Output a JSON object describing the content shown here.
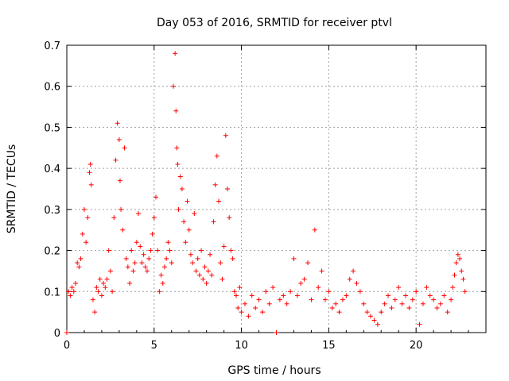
{
  "chart_data": {
    "type": "scatter",
    "title": "Day 053 of 2016, SRMTID for receiver ptvl",
    "xlabel": "GPS time / hours",
    "ylabel": "SRMTID / TECUs",
    "xlim": [
      0,
      24
    ],
    "ylim": [
      0,
      0.7
    ],
    "xticks": [
      "0",
      "5",
      "10",
      "15",
      "20"
    ],
    "yticks": [
      "0",
      "0.1",
      "0.2",
      "0.3",
      "0.4",
      "0.5",
      "0.6",
      "0.7"
    ],
    "grid": true,
    "marker": "+",
    "color": "#ff0000",
    "series": [
      {
        "name": "SRMTID",
        "x": [
          0.0,
          0.1,
          0.2,
          0.3,
          0.4,
          0.5,
          0.6,
          0.7,
          0.8,
          0.9,
          1.0,
          1.1,
          1.2,
          1.3,
          1.35,
          1.4,
          1.5,
          1.6,
          1.7,
          1.8,
          1.9,
          2.0,
          2.1,
          2.2,
          2.3,
          2.4,
          2.5,
          2.6,
          2.7,
          2.8,
          2.9,
          3.0,
          3.05,
          3.1,
          3.2,
          3.3,
          3.4,
          3.5,
          3.6,
          3.7,
          3.8,
          3.9,
          4.0,
          4.1,
          4.2,
          4.3,
          4.4,
          4.5,
          4.6,
          4.7,
          4.8,
          4.9,
          5.0,
          5.1,
          5.2,
          5.3,
          5.4,
          5.5,
          5.6,
          5.7,
          5.8,
          5.9,
          6.0,
          6.1,
          6.2,
          6.25,
          6.3,
          6.35,
          6.4,
          6.5,
          6.6,
          6.7,
          6.8,
          6.9,
          7.0,
          7.1,
          7.2,
          7.3,
          7.4,
          7.5,
          7.6,
          7.7,
          7.8,
          7.9,
          8.0,
          8.1,
          8.2,
          8.3,
          8.4,
          8.5,
          8.6,
          8.7,
          8.8,
          8.9,
          9.0,
          9.1,
          9.2,
          9.3,
          9.4,
          9.5,
          9.6,
          9.7,
          9.8,
          9.9,
          10.0,
          10.2,
          10.4,
          10.6,
          10.8,
          11.0,
          11.2,
          11.4,
          11.6,
          11.8,
          12.0,
          12.2,
          12.4,
          12.6,
          12.8,
          13.0,
          13.2,
          13.4,
          13.6,
          13.8,
          14.0,
          14.2,
          14.4,
          14.6,
          14.8,
          15.0,
          15.2,
          15.4,
          15.6,
          15.8,
          16.0,
          16.2,
          16.4,
          16.6,
          16.8,
          17.0,
          17.2,
          17.4,
          17.6,
          17.8,
          18.0,
          18.2,
          18.4,
          18.6,
          18.8,
          19.0,
          19.2,
          19.4,
          19.6,
          19.8,
          20.0,
          20.2,
          20.4,
          20.6,
          20.8,
          21.0,
          21.2,
          21.4,
          21.6,
          21.8,
          22.0,
          22.1,
          22.2,
          22.3,
          22.4,
          22.5,
          22.6,
          22.7,
          22.8
        ],
        "y": [
          0.0,
          0.1,
          0.09,
          0.11,
          0.1,
          0.12,
          0.17,
          0.16,
          0.18,
          0.24,
          0.3,
          0.22,
          0.28,
          0.39,
          0.41,
          0.36,
          0.08,
          0.05,
          0.11,
          0.1,
          0.13,
          0.09,
          0.12,
          0.11,
          0.13,
          0.2,
          0.15,
          0.1,
          0.28,
          0.42,
          0.51,
          0.47,
          0.37,
          0.3,
          0.25,
          0.45,
          0.18,
          0.16,
          0.12,
          0.2,
          0.15,
          0.17,
          0.22,
          0.29,
          0.21,
          0.17,
          0.19,
          0.16,
          0.15,
          0.18,
          0.2,
          0.24,
          0.28,
          0.33,
          0.2,
          0.1,
          0.14,
          0.12,
          0.16,
          0.18,
          0.22,
          0.2,
          0.17,
          0.6,
          0.68,
          0.54,
          0.45,
          0.41,
          0.3,
          0.38,
          0.35,
          0.27,
          0.22,
          0.32,
          0.25,
          0.19,
          0.17,
          0.29,
          0.15,
          0.18,
          0.14,
          0.2,
          0.13,
          0.16,
          0.12,
          0.15,
          0.19,
          0.14,
          0.27,
          0.36,
          0.43,
          0.32,
          0.17,
          0.13,
          0.21,
          0.48,
          0.35,
          0.28,
          0.2,
          0.18,
          0.1,
          0.09,
          0.06,
          0.11,
          0.05,
          0.07,
          0.04,
          0.09,
          0.06,
          0.08,
          0.05,
          0.1,
          0.07,
          0.11,
          0.0,
          0.08,
          0.09,
          0.07,
          0.1,
          0.18,
          0.09,
          0.12,
          0.13,
          0.17,
          0.08,
          0.25,
          0.11,
          0.15,
          0.08,
          0.1,
          0.06,
          0.07,
          0.05,
          0.08,
          0.09,
          0.13,
          0.15,
          0.12,
          0.1,
          0.07,
          0.05,
          0.04,
          0.03,
          0.02,
          0.05,
          0.07,
          0.09,
          0.06,
          0.08,
          0.11,
          0.07,
          0.09,
          0.06,
          0.08,
          0.1,
          0.02,
          0.07,
          0.11,
          0.09,
          0.08,
          0.06,
          0.07,
          0.09,
          0.05,
          0.08,
          0.11,
          0.14,
          0.17,
          0.19,
          0.18,
          0.15,
          0.13,
          0.1
        ]
      }
    ]
  }
}
